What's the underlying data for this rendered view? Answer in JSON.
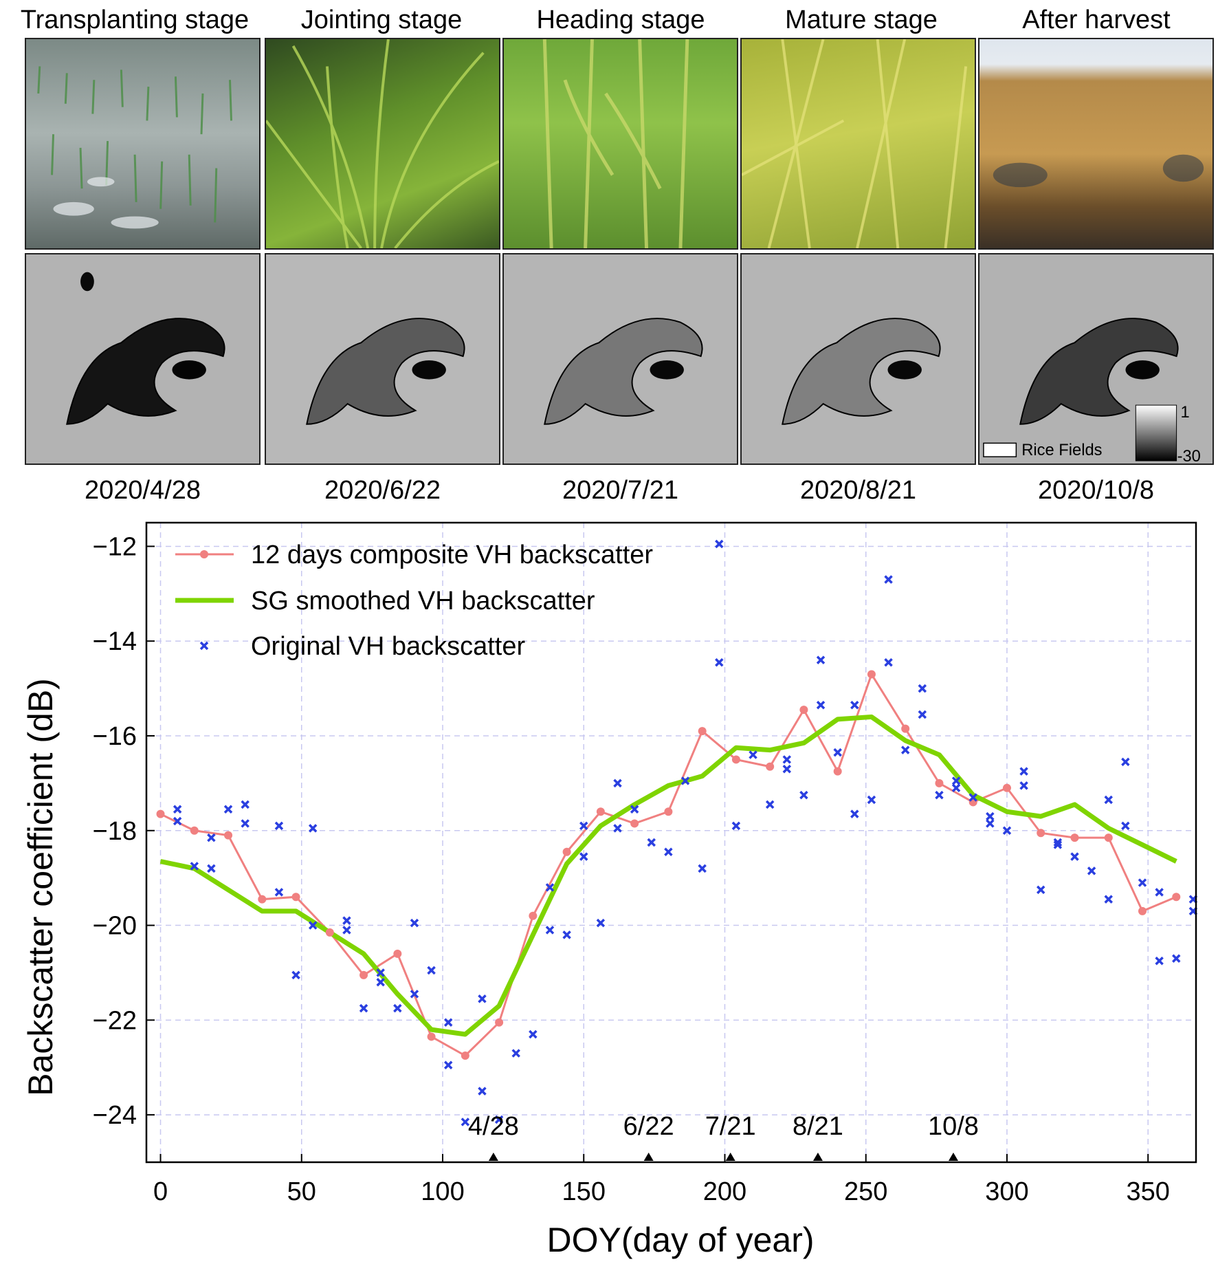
{
  "stages": [
    {
      "title": "Transplanting stage",
      "date": "2020/4/28"
    },
    {
      "title": "Jointing stage",
      "date": "2020/6/22"
    },
    {
      "title": "Heading stage",
      "date": "2020/7/21"
    },
    {
      "title": "Mature stage",
      "date": "2020/8/21"
    },
    {
      "title": "After harvest",
      "date": "2020/10/8"
    }
  ],
  "sar_legend": {
    "label": "Rice Fields",
    "max": "1",
    "min": "-30"
  },
  "colors": {
    "composite": "#f08080",
    "smoothed": "#7fd400",
    "original": "#2a3fe0",
    "grid": "#c8c8f0"
  },
  "chart_data": {
    "type": "line",
    "xlabel": "DOY(day of year)",
    "ylabel": "Backscatter coefficient (dB)",
    "xlim": [
      -5,
      367
    ],
    "ylim": [
      -25,
      -11.5
    ],
    "xticks": [
      0,
      50,
      100,
      150,
      200,
      250,
      300,
      350
    ],
    "yticks": [
      -24,
      -22,
      -20,
      -18,
      -16,
      -14,
      -12
    ],
    "ytick_labels": [
      "−24",
      "−22",
      "−20",
      "−18",
      "−16",
      "−14",
      "−12"
    ],
    "grid": true,
    "legend_position": "top-left",
    "series": [
      {
        "name": "12 days composite VH backscatter",
        "kind": "line-marker",
        "x": [
          0,
          12,
          24,
          36,
          48,
          60,
          72,
          84,
          96,
          108,
          120,
          132,
          144,
          156,
          168,
          180,
          192,
          204,
          216,
          228,
          240,
          252,
          264,
          276,
          288,
          300,
          312,
          324,
          336,
          348,
          360
        ],
        "y": [
          -17.65,
          -18.0,
          -18.1,
          -19.45,
          -19.4,
          -20.15,
          -21.05,
          -20.6,
          -22.35,
          -22.75,
          -22.05,
          -19.8,
          -18.45,
          -17.6,
          -17.85,
          -17.6,
          -15.9,
          -16.5,
          -16.65,
          -15.45,
          -16.75,
          -14.7,
          -15.85,
          -17.0,
          -17.4,
          -17.1,
          -18.05,
          -18.15,
          -18.15,
          -19.7,
          -19.4
        ]
      },
      {
        "name": "SG smoothed VH backscatter",
        "kind": "thick-line",
        "x": [
          0,
          12,
          24,
          36,
          48,
          60,
          72,
          84,
          96,
          108,
          120,
          132,
          144,
          156,
          168,
          180,
          192,
          204,
          216,
          228,
          240,
          252,
          264,
          276,
          288,
          300,
          312,
          324,
          336,
          348,
          360
        ],
        "y": [
          -18.65,
          -18.8,
          -19.25,
          -19.7,
          -19.7,
          -20.15,
          -20.6,
          -21.45,
          -22.2,
          -22.3,
          -21.7,
          -20.2,
          -18.7,
          -17.9,
          -17.45,
          -17.05,
          -16.85,
          -16.25,
          -16.3,
          -16.15,
          -15.65,
          -15.6,
          -16.1,
          -16.4,
          -17.25,
          -17.6,
          -17.7,
          -17.45,
          -17.95,
          -18.3,
          -18.65
        ]
      },
      {
        "name": "Original VH backscatter",
        "kind": "scatter",
        "points": [
          [
            6,
            -17.55
          ],
          [
            6,
            -17.8
          ],
          [
            12,
            -18.75
          ],
          [
            18,
            -18.15
          ],
          [
            18,
            -18.8
          ],
          [
            24,
            -17.55
          ],
          [
            30,
            -17.45
          ],
          [
            30,
            -17.85
          ],
          [
            42,
            -17.9
          ],
          [
            42,
            -19.3
          ],
          [
            48,
            -21.05
          ],
          [
            54,
            -17.95
          ],
          [
            54,
            -20.0
          ],
          [
            66,
            -20.1
          ],
          [
            66,
            -19.9
          ],
          [
            72,
            -21.75
          ],
          [
            78,
            -21.0
          ],
          [
            78,
            -21.2
          ],
          [
            84,
            -21.75
          ],
          [
            90,
            -19.95
          ],
          [
            90,
            -21.45
          ],
          [
            96,
            -20.95
          ],
          [
            102,
            -22.05
          ],
          [
            102,
            -22.95
          ],
          [
            114,
            -21.55
          ],
          [
            114,
            -23.5
          ],
          [
            108,
            -24.15
          ],
          [
            120,
            -24.1
          ],
          [
            126,
            -22.7
          ],
          [
            132,
            -22.3
          ],
          [
            138,
            -19.2
          ],
          [
            138,
            -20.1
          ],
          [
            144,
            -20.2
          ],
          [
            150,
            -17.9
          ],
          [
            150,
            -18.55
          ],
          [
            156,
            -19.95
          ],
          [
            162,
            -17.0
          ],
          [
            162,
            -17.95
          ],
          [
            168,
            -17.55
          ],
          [
            174,
            -18.25
          ],
          [
            180,
            -18.45
          ],
          [
            186,
            -16.95
          ],
          [
            192,
            -18.8
          ],
          [
            198,
            -11.95
          ],
          [
            198,
            -14.45
          ],
          [
            204,
            -17.9
          ],
          [
            210,
            -16.4
          ],
          [
            216,
            -17.45
          ],
          [
            222,
            -16.5
          ],
          [
            222,
            -16.7
          ],
          [
            228,
            -17.25
          ],
          [
            234,
            -14.4
          ],
          [
            234,
            -15.35
          ],
          [
            240,
            -16.35
          ],
          [
            246,
            -15.35
          ],
          [
            246,
            -17.65
          ],
          [
            252,
            -17.35
          ],
          [
            258,
            -12.7
          ],
          [
            258,
            -14.45
          ],
          [
            264,
            -16.3
          ],
          [
            270,
            -15.0
          ],
          [
            270,
            -15.55
          ],
          [
            276,
            -17.25
          ],
          [
            282,
            -16.95
          ],
          [
            282,
            -17.1
          ],
          [
            288,
            -17.3
          ],
          [
            294,
            -17.7
          ],
          [
            294,
            -17.85
          ],
          [
            300,
            -18.0
          ],
          [
            306,
            -16.75
          ],
          [
            306,
            -17.05
          ],
          [
            312,
            -19.25
          ],
          [
            318,
            -18.25
          ],
          [
            318,
            -18.3
          ],
          [
            324,
            -18.55
          ],
          [
            330,
            -18.85
          ],
          [
            336,
            -17.35
          ],
          [
            336,
            -19.45
          ],
          [
            342,
            -16.55
          ],
          [
            342,
            -17.9
          ],
          [
            348,
            -19.1
          ],
          [
            354,
            -19.3
          ],
          [
            354,
            -20.75
          ],
          [
            360,
            -20.7
          ],
          [
            366,
            -19.45
          ],
          [
            366,
            -19.7
          ]
        ]
      }
    ],
    "annotations": [
      {
        "label": "4/28",
        "x": 118
      },
      {
        "label": "6/22",
        "x": 173
      },
      {
        "label": "7/21",
        "x": 202
      },
      {
        "label": "8/21",
        "x": 233
      },
      {
        "label": "10/8",
        "x": 281
      }
    ]
  }
}
